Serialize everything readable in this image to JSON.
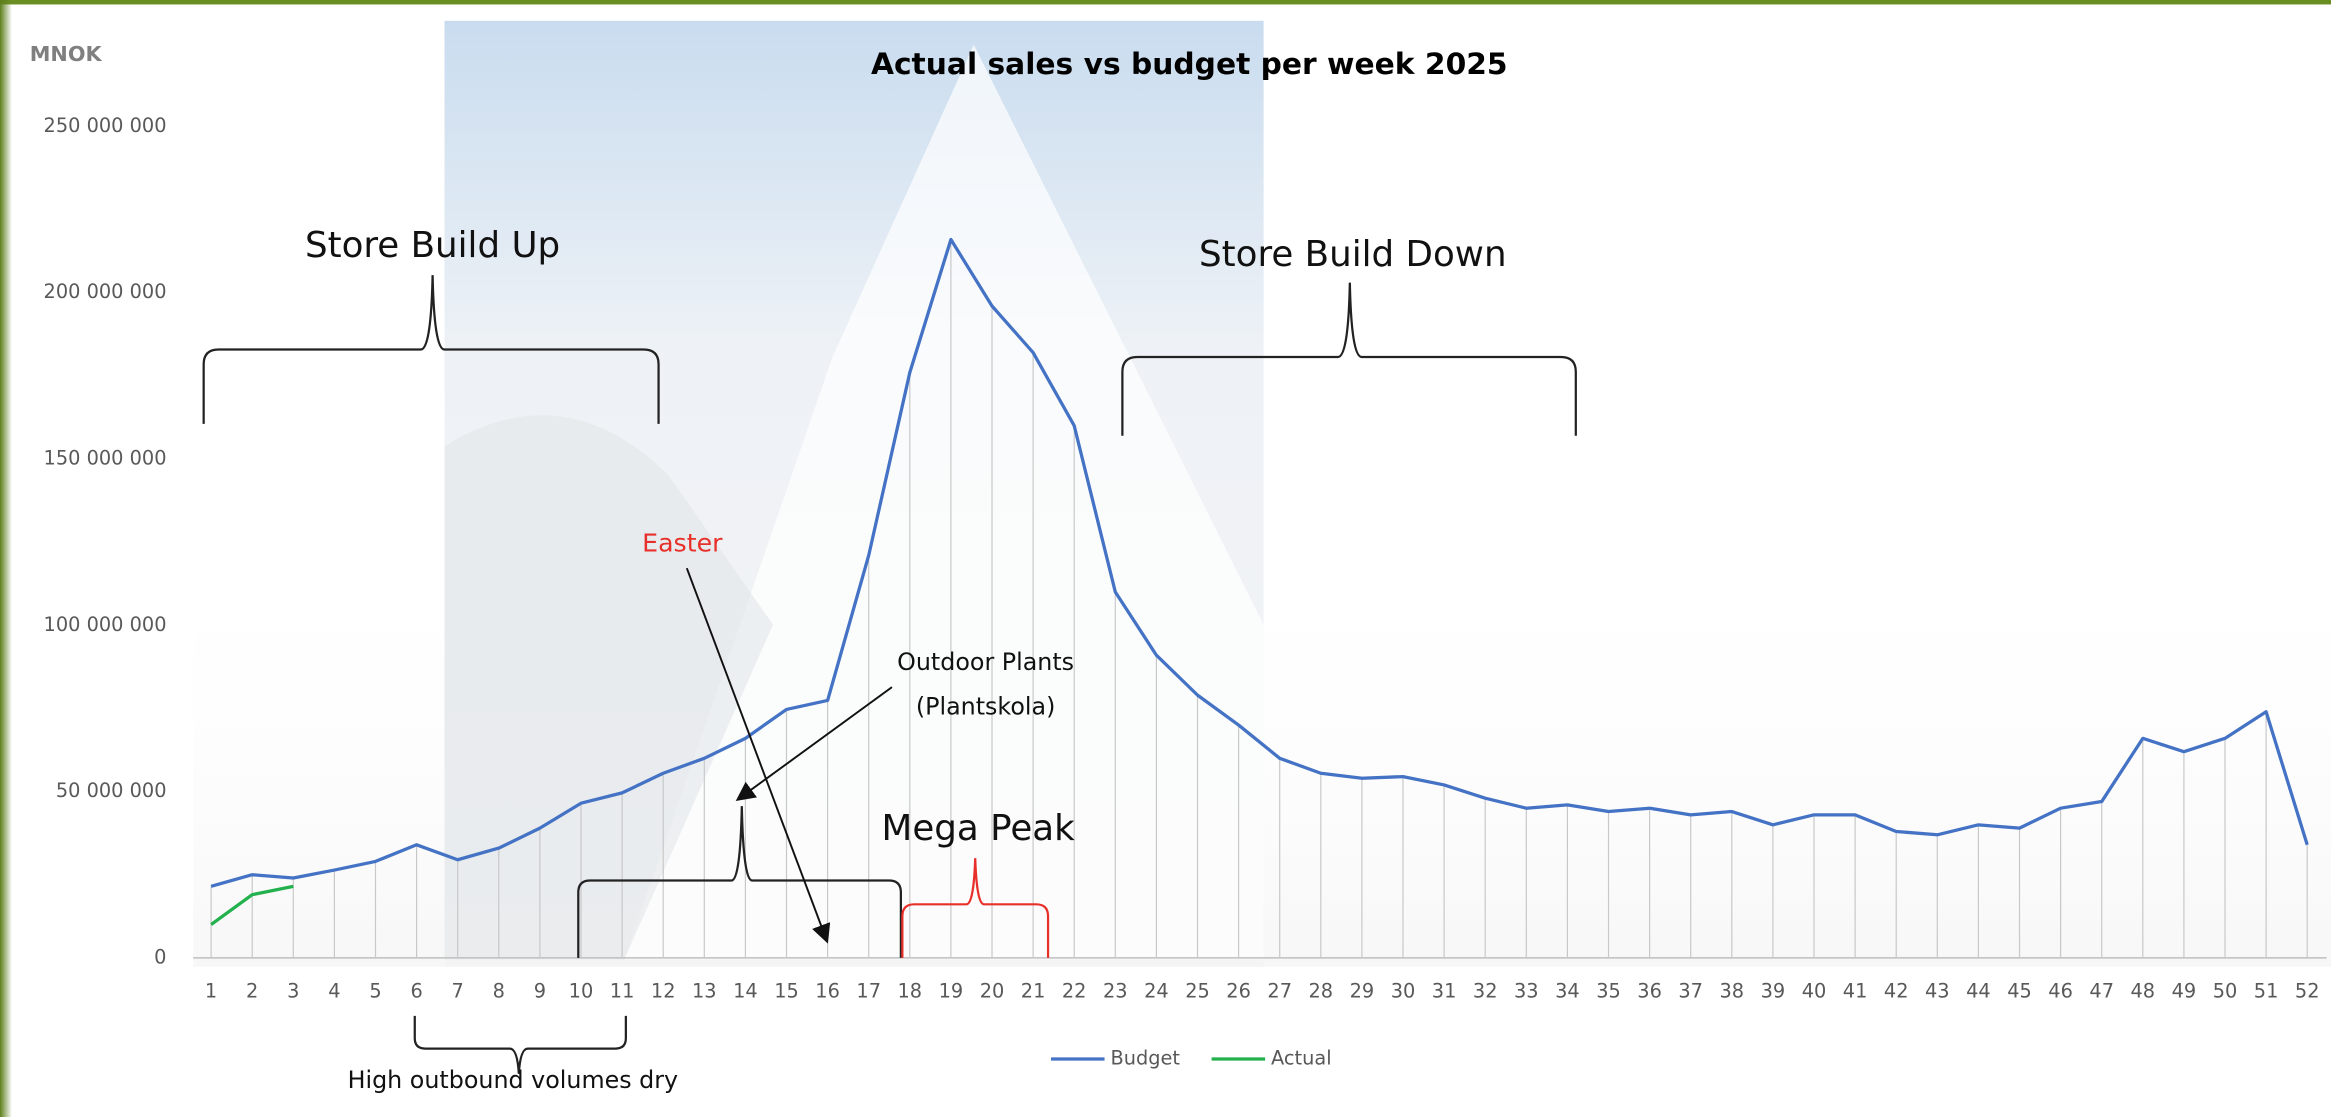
{
  "chart_data": {
    "type": "line",
    "title": "Actual sales vs budget per week 2025",
    "y_axis_label": "MNOK",
    "categories": [
      "1",
      "2",
      "3",
      "4",
      "5",
      "6",
      "7",
      "8",
      "9",
      "10",
      "11",
      "12",
      "13",
      "14",
      "15",
      "16",
      "17",
      "18",
      "19",
      "20",
      "21",
      "22",
      "23",
      "24",
      "25",
      "26",
      "27",
      "28",
      "29",
      "30",
      "31",
      "32",
      "33",
      "34",
      "35",
      "36",
      "37",
      "38",
      "39",
      "40",
      "41",
      "42",
      "43",
      "44",
      "45",
      "46",
      "47",
      "48",
      "49",
      "50",
      "51",
      "52"
    ],
    "series": [
      {
        "name": "Budget",
        "color": "#4472c4",
        "values": [
          21500000,
          25000000,
          24000000,
          26400000,
          29000000,
          34000000,
          29500000,
          33000000,
          39000000,
          46500000,
          49600000,
          55500000,
          60000000,
          66000000,
          74700000,
          77400000,
          121000000,
          176000000,
          216000000,
          196000000,
          182000000,
          160000000,
          110000000,
          91000000,
          79000000,
          70000000,
          60000000,
          55500000,
          54000000,
          54500000,
          52000000,
          48000000,
          45000000,
          46000000,
          44000000,
          45000000,
          43000000,
          44000000,
          40000000,
          43000000,
          43000000,
          38000000,
          37000000,
          40000000,
          39000000,
          45000000,
          47000000,
          66000000,
          62000000,
          66000000,
          74000000,
          34000000
        ]
      },
      {
        "name": "Actual",
        "color": "#22b14c",
        "values": [
          10000000,
          19000000,
          21500000,
          null,
          null,
          null,
          null,
          null,
          null,
          null,
          null,
          null,
          null,
          null,
          null,
          null,
          null,
          null,
          null,
          null,
          null,
          null,
          null,
          null,
          null,
          null,
          null,
          null,
          null,
          null,
          null,
          null,
          null,
          null,
          null,
          null,
          null,
          null,
          null,
          null,
          null,
          null,
          null,
          null,
          null,
          null,
          null,
          null,
          null,
          null,
          null,
          null
        ]
      }
    ],
    "ylim": [
      0,
      250000000
    ],
    "yticks": [
      0,
      {
        "value": 50000000,
        "label": "50 000 000"
      },
      {
        "value": 100000000,
        "label": "100 000 000"
      },
      {
        "value": 150000000,
        "label": "150 000 000"
      },
      {
        "value": 200000000,
        "label": "200 000 000"
      },
      {
        "value": 250000000,
        "label": "250 000 000"
      }
    ],
    "legend": "bottom",
    "drop_lines": true,
    "annotations": {
      "store_build_up": "Store Build Up",
      "store_build_down": "Store Build Down",
      "easter": "Easter",
      "outdoor_plants": [
        "Outdoor Plants",
        "(Plantskola)"
      ],
      "mega_peak": "Mega Peak",
      "high_outbound": "High outbound volumes dry"
    }
  }
}
